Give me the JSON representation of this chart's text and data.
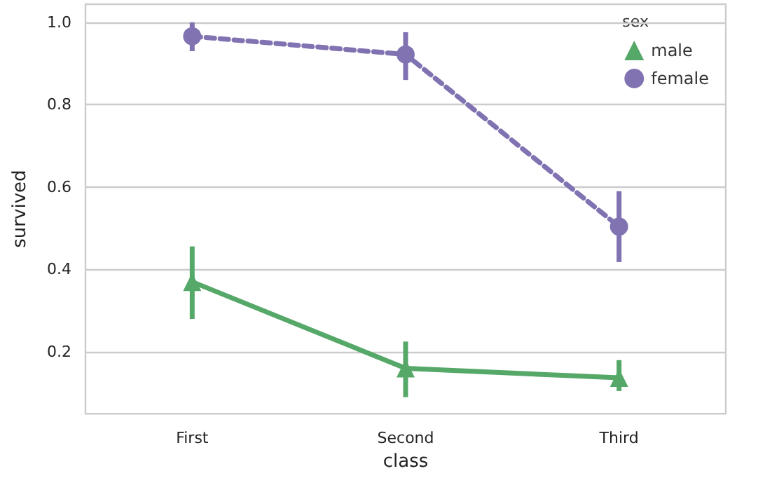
{
  "chart_data": {
    "type": "line",
    "xlabel": "class",
    "ylabel": "survived",
    "legend_title": "sex",
    "categories": [
      "First",
      "Second",
      "Third"
    ],
    "series": [
      {
        "name": "male",
        "color": "#55a868",
        "marker": "triangle",
        "line_style": "solid",
        "values": [
          0.37,
          0.16,
          0.137
        ],
        "errors": [
          [
            0.28,
            0.456
          ],
          [
            0.09,
            0.225
          ],
          [
            0.105,
            0.18
          ]
        ]
      },
      {
        "name": "female",
        "color": "#8172b2",
        "marker": "circle",
        "line_style": "dashed",
        "values": [
          0.966,
          0.922,
          0.504
        ],
        "errors": [
          [
            0.93,
            1.0
          ],
          [
            0.86,
            0.976
          ],
          [
            0.418,
            0.59
          ]
        ]
      }
    ],
    "ylim": [
      0.05,
      1.044
    ],
    "yticks": [
      0.2,
      0.4,
      0.6,
      0.8,
      {
        "value": 1,
        "label": "1.0"
      }
    ],
    "grid": "y",
    "legend": "top right"
  }
}
